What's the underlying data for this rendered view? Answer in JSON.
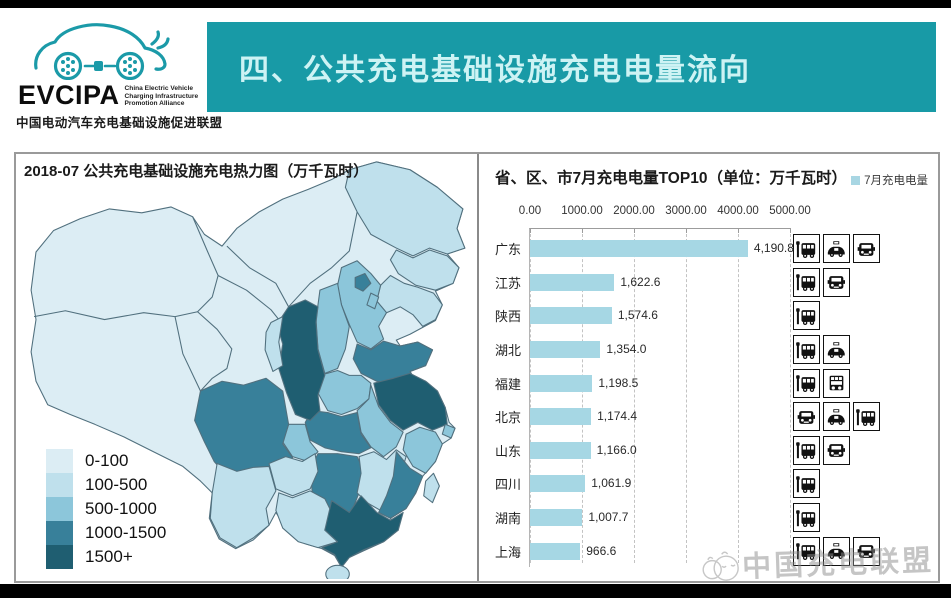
{
  "header": {
    "logo": {
      "brand": "EVCIPA",
      "brand_sub_en": "China Electric Vehicle Charging Infrastructure Promotion Alliance",
      "brand_sub_cn": "中国电动汽车充电基础设施促进联盟"
    },
    "banner_title": "四、公共充电基础设施充电电量流向",
    "banner_color": "#189aa6"
  },
  "map_panel": {
    "title": "2018-07 公共充电基础设施充电热力图（万千瓦时）",
    "legend": [
      {
        "label": "0-100",
        "color": "#dcedf4"
      },
      {
        "label": "100-500",
        "color": "#bfe0ec"
      },
      {
        "label": "500-1000",
        "color": "#8cc6da"
      },
      {
        "label": "1000-1500",
        "color": "#38809a"
      },
      {
        "label": "1500+",
        "color": "#1f5e71"
      }
    ]
  },
  "chart_data": {
    "type": "bar",
    "orientation": "horizontal",
    "title": "省、区、市7月充电电量TOP10（单位：万千瓦时）",
    "legend": [
      {
        "name": "7月充电电量",
        "color": "#a8d6e3",
        "position": "top-right"
      }
    ],
    "xlim": [
      0,
      5000
    ],
    "x_ticks": [
      "0.00",
      "1000.00",
      "2000.00",
      "3000.00",
      "4000.00",
      "5000.00"
    ],
    "grid": "dashed-vertical",
    "bar_color": "#a6d7e4",
    "categories": [
      "广东",
      "江苏",
      "陕西",
      "湖北",
      "福建",
      "北京",
      "山东",
      "四川",
      "湖南",
      "上海"
    ],
    "values": [
      4190.8,
      1622.6,
      1574.6,
      1354.0,
      1198.5,
      1174.4,
      1166.0,
      1061.9,
      1007.7,
      966.6
    ],
    "value_labels": [
      "4,190.8",
      "1,622.6",
      "1,574.6",
      "1,354.0",
      "1,198.5",
      "1,174.4",
      "1,166.0",
      "1,061.9",
      "1,007.7",
      "966.6"
    ],
    "row_icons": [
      [
        "bus",
        "taxi",
        "car"
      ],
      [
        "bus",
        "car"
      ],
      [
        "bus"
      ],
      [
        "bus",
        "taxi"
      ],
      [
        "bus",
        "minibus"
      ],
      [
        "car",
        "taxi",
        "bus"
      ],
      [
        "bus",
        "car"
      ],
      [
        "bus"
      ],
      [
        "bus"
      ],
      [
        "bus",
        "taxi",
        "car"
      ]
    ]
  },
  "watermark": {
    "text": "中国充电联盟"
  }
}
